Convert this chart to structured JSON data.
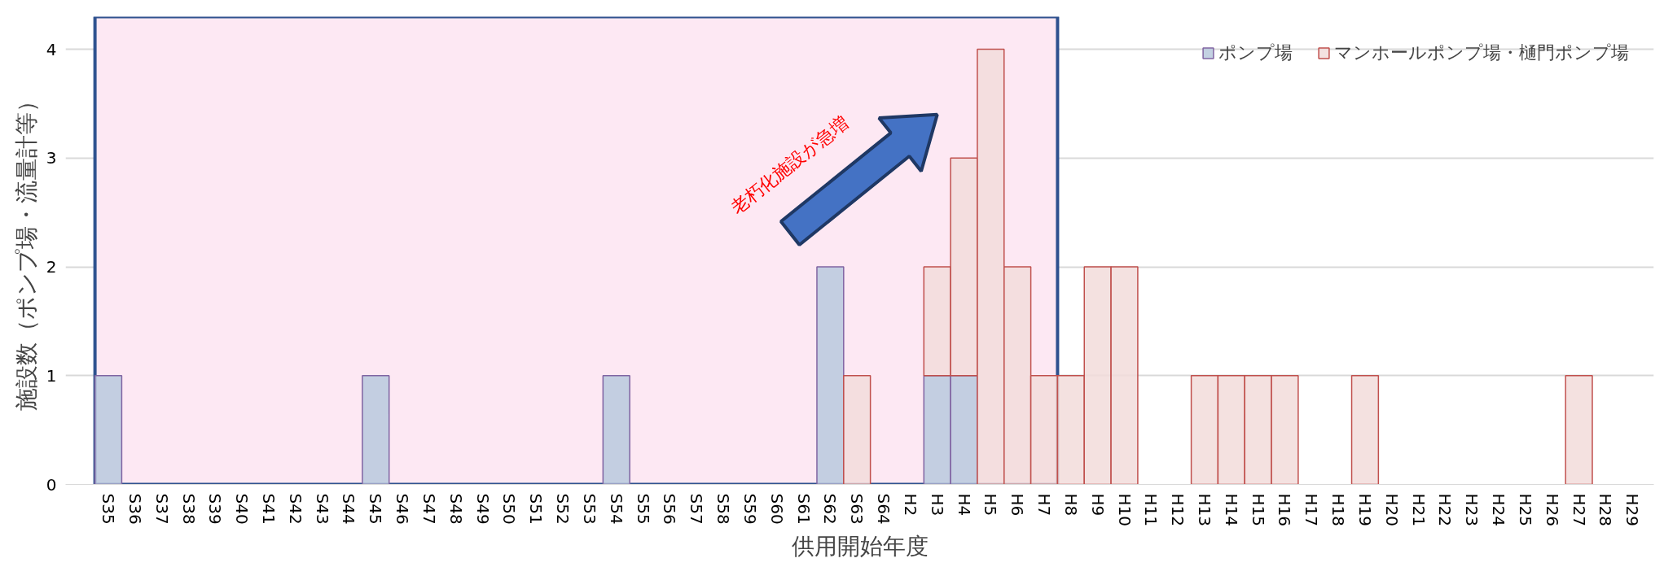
{
  "chart_data": {
    "type": "bar",
    "stacked": true,
    "xlabel": "供用開始年度",
    "ylabel": "施設数（ポンプ場・流量計等）",
    "categories": [
      "S35",
      "S36",
      "S37",
      "S38",
      "S39",
      "S40",
      "S41",
      "S42",
      "S43",
      "S44",
      "S45",
      "S46",
      "S47",
      "S48",
      "S49",
      "S50",
      "S51",
      "S52",
      "S53",
      "S54",
      "S55",
      "S56",
      "S57",
      "S58",
      "S59",
      "S60",
      "S61",
      "S62",
      "S63",
      "S64",
      "H2",
      "H3",
      "H4",
      "H5",
      "H6",
      "H7",
      "H8",
      "H9",
      "H10",
      "H11",
      "H12",
      "H13",
      "H14",
      "H15",
      "H16",
      "H17",
      "H18",
      "H19",
      "H20",
      "H21",
      "H22",
      "H23",
      "H24",
      "H25",
      "H26",
      "H27",
      "H28",
      "H29"
    ],
    "series": [
      {
        "name": "ポンプ場",
        "color": "#b9c9dd",
        "values": [
          1,
          0,
          0,
          0,
          0,
          0,
          0,
          0,
          0,
          0,
          1,
          0,
          0,
          0,
          0,
          0,
          0,
          0,
          0,
          1,
          0,
          0,
          0,
          0,
          0,
          0,
          0,
          2,
          0,
          0,
          0,
          1,
          1,
          0,
          0,
          0,
          0,
          0,
          0,
          0,
          0,
          0,
          0,
          0,
          0,
          0,
          0,
          0,
          0,
          0,
          0,
          0,
          0,
          0,
          0,
          0,
          0,
          0
        ]
      },
      {
        "name": "マンホールポンプ場・樋門ポンプ場",
        "color": "#f2dcdb",
        "values": [
          0,
          0,
          0,
          0,
          0,
          0,
          0,
          0,
          0,
          0,
          0,
          0,
          0,
          0,
          0,
          0,
          0,
          0,
          0,
          0,
          0,
          0,
          0,
          0,
          0,
          0,
          0,
          0,
          1,
          0,
          0,
          1,
          2,
          4,
          2,
          1,
          1,
          2,
          2,
          0,
          0,
          1,
          1,
          1,
          1,
          0,
          0,
          1,
          0,
          0,
          0,
          0,
          0,
          0,
          0,
          1,
          0,
          0
        ]
      }
    ],
    "ylim": [
      0,
      4.3
    ],
    "yticks": [
      0,
      1,
      2,
      3,
      4
    ],
    "grid": "y",
    "legend": "top right",
    "bands": [
      {
        "axis": "x",
        "from": "S35",
        "to": "H7",
        "color": "#fde8f3"
      }
    ],
    "annotations": [
      "老朽化施設が急増"
    ]
  }
}
